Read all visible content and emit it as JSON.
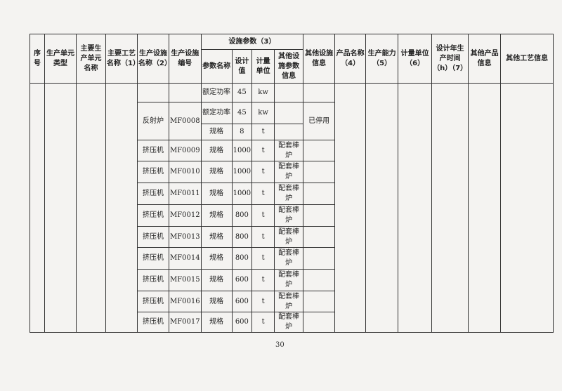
{
  "headers": {
    "seq": "序号",
    "unit_type": "生产单元类型",
    "unit_name": "主要生产单元名称",
    "process": "主要工艺名称（1）",
    "facility_name": "生产设施名称（2）",
    "facility_code": "生产设施编号",
    "params_group": "设施参数（3）",
    "param_name": "参数名称",
    "design_value": "设计值",
    "unit": "计量单位",
    "other_param": "其他设施参数信息",
    "other_facility": "其他设施信息",
    "product": "产品名称（4）",
    "capacity": "生产能力（5）",
    "measure_unit": "计量单位（6）",
    "hours": "设计年生产时间（h）（7）",
    "other_product": "其他产品信息",
    "other_process": "其他工艺信息"
  },
  "rows": [
    {
      "facility": "",
      "code": "",
      "param": "额定功率",
      "value": "45",
      "unit": "kw",
      "other": ""
    },
    {
      "facility": "反射炉",
      "code": "MF0008",
      "param": "额定功率",
      "value": "45",
      "unit": "kw",
      "other": ""
    },
    {
      "param": "规格",
      "value": "8",
      "unit": "t",
      "other": ""
    },
    {
      "facility": "挤压机",
      "code": "MF0009",
      "param": "规格",
      "value": "1000",
      "unit": "t",
      "other": "配套棒炉"
    },
    {
      "facility": "挤压机",
      "code": "MF0010",
      "param": "规格",
      "value": "1000",
      "unit": "t",
      "other": "配套棒炉"
    },
    {
      "facility": "挤压机",
      "code": "MF0011",
      "param": "规格",
      "value": "1000",
      "unit": "t",
      "other": "配套棒炉"
    },
    {
      "facility": "挤压机",
      "code": "MF0012",
      "param": "规格",
      "value": "800",
      "unit": "t",
      "other": "配套棒炉"
    },
    {
      "facility": "挤压机",
      "code": "MF0013",
      "param": "规格",
      "value": "800",
      "unit": "t",
      "other": "配套棒炉"
    },
    {
      "facility": "挤压机",
      "code": "MF0014",
      "param": "规格",
      "value": "800",
      "unit": "t",
      "other": "配套棒炉"
    },
    {
      "facility": "挤压机",
      "code": "MF0015",
      "param": "规格",
      "value": "600",
      "unit": "t",
      "other": "配套棒炉"
    },
    {
      "facility": "挤压机",
      "code": "MF0016",
      "param": "规格",
      "value": "600",
      "unit": "t",
      "other": "配套棒炉"
    },
    {
      "facility": "挤压机",
      "code": "MF0017",
      "param": "规格",
      "value": "600",
      "unit": "t",
      "other": "配套棒炉"
    }
  ],
  "other_facility_note": "已停用",
  "page_number": "30"
}
